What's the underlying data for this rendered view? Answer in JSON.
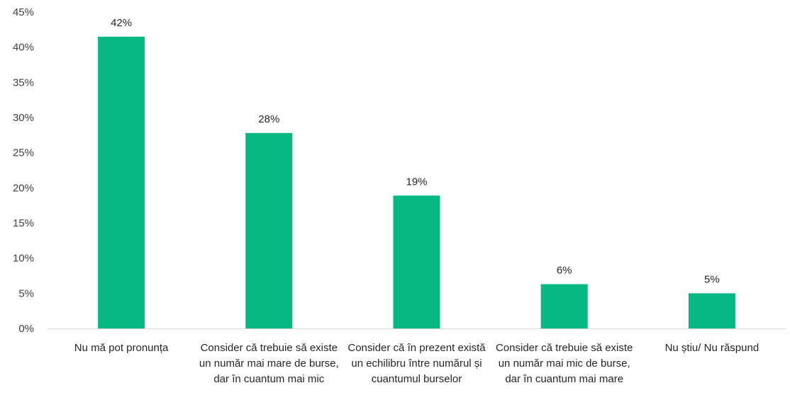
{
  "chart_data": {
    "type": "bar",
    "categories": [
      "Nu mă pot pronunța",
      "Consider că trebuie să existe un număr mai mare de burse, dar în cuantum mai mic",
      "Consider că în prezent există un echilibru între numărul și cuantumul burselor",
      "Consider că trebuie să existe un număr mai mic de burse, dar în cuantum mai mare",
      "Nu știu/ Nu răspund"
    ],
    "values": [
      41.5,
      27.8,
      18.9,
      6.3,
      5.0
    ],
    "data_labels": [
      "42%",
      "28%",
      "19%",
      "6%",
      "5%"
    ],
    "ylim": [
      0,
      45
    ],
    "yticks": [
      0,
      5,
      10,
      15,
      20,
      25,
      30,
      35,
      40,
      45
    ],
    "ytick_labels": [
      "0%",
      "5%",
      "10%",
      "15%",
      "20%",
      "25%",
      "30%",
      "35%",
      "40%",
      "45%"
    ],
    "grid": false,
    "bar_color": "#05B884",
    "axis_color": "#D9D9D9",
    "title": "",
    "xlabel": "",
    "ylabel": ""
  }
}
